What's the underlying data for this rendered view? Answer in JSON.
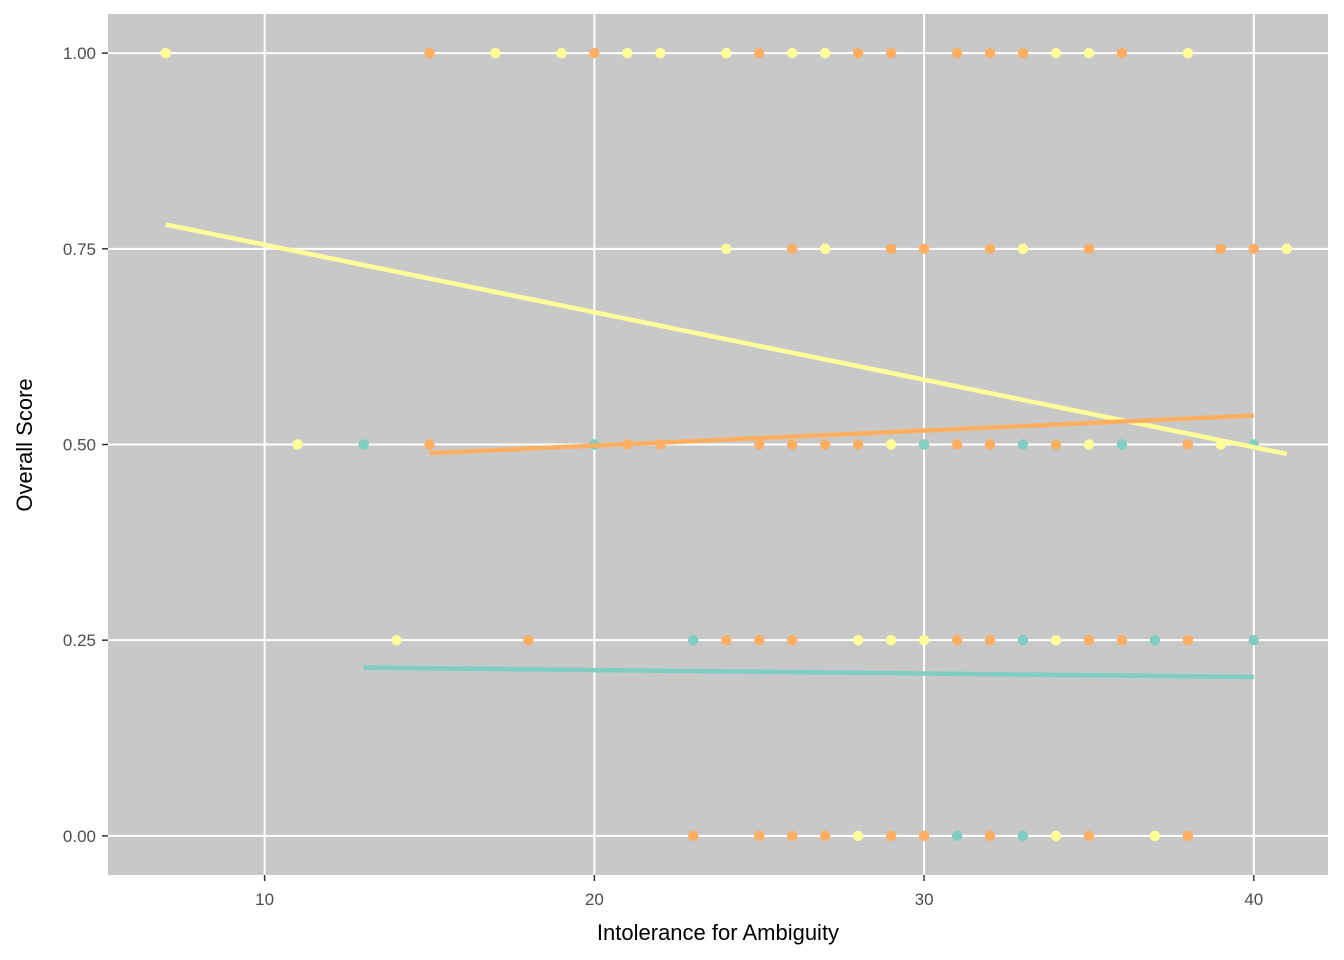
{
  "chart_data": {
    "type": "scatter",
    "xlabel": "Intolerance for Ambiguity",
    "ylabel": "Overall Score",
    "xlim": [
      5.25,
      42.25
    ],
    "ylim": [
      -0.05,
      1.05
    ],
    "x_ticks": [
      10,
      20,
      30,
      40
    ],
    "x_tick_labels": [
      "10",
      "20",
      "30",
      "40"
    ],
    "y_ticks": [
      0,
      0.25,
      0.5,
      0.75,
      1
    ],
    "y_tick_labels": [
      "0.00",
      "0.25",
      "0.50",
      "0.75",
      "1.00"
    ],
    "grid": true,
    "legend": "none",
    "panel_background": "#c8c8c8",
    "grid_color": "#ffffff",
    "series": [
      {
        "color": "#ffff99",
        "points": [
          [
            7,
            1
          ],
          [
            17,
            1
          ],
          [
            19,
            1
          ],
          [
            21,
            1
          ],
          [
            22,
            1
          ],
          [
            24,
            1
          ],
          [
            26,
            1
          ],
          [
            27,
            1
          ],
          [
            34,
            1
          ],
          [
            35,
            1
          ],
          [
            38,
            1
          ],
          [
            24,
            0.75
          ],
          [
            27,
            0.75
          ],
          [
            33,
            0.75
          ],
          [
            41,
            0.75
          ],
          [
            11,
            0.5
          ],
          [
            29,
            0.5
          ],
          [
            35,
            0.5
          ],
          [
            39,
            0.5
          ],
          [
            14,
            0.25
          ],
          [
            28,
            0.25
          ],
          [
            29,
            0.25
          ],
          [
            30,
            0.25
          ],
          [
            34,
            0.25
          ],
          [
            28,
            0
          ],
          [
            34,
            0
          ],
          [
            37,
            0
          ]
        ],
        "fit": {
          "x": [
            7,
            41
          ],
          "y": [
            0.781,
            0.488
          ]
        }
      },
      {
        "color": "#fdae61",
        "points": [
          [
            15,
            1
          ],
          [
            20,
            1
          ],
          [
            25,
            1
          ],
          [
            28,
            1
          ],
          [
            29,
            1
          ],
          [
            31,
            1
          ],
          [
            32,
            1
          ],
          [
            33,
            1
          ],
          [
            36,
            1
          ],
          [
            26,
            0.75
          ],
          [
            29,
            0.75
          ],
          [
            30,
            0.75
          ],
          [
            32,
            0.75
          ],
          [
            35,
            0.75
          ],
          [
            39,
            0.75
          ],
          [
            40,
            0.75
          ],
          [
            15,
            0.5
          ],
          [
            21,
            0.5
          ],
          [
            22,
            0.5
          ],
          [
            25,
            0.5
          ],
          [
            26,
            0.5
          ],
          [
            27,
            0.5
          ],
          [
            28,
            0.5
          ],
          [
            31,
            0.5
          ],
          [
            32,
            0.5
          ],
          [
            34,
            0.5
          ],
          [
            38,
            0.5
          ],
          [
            18,
            0.25
          ],
          [
            24,
            0.25
          ],
          [
            25,
            0.25
          ],
          [
            26,
            0.25
          ],
          [
            31,
            0.25
          ],
          [
            32,
            0.25
          ],
          [
            35,
            0.25
          ],
          [
            36,
            0.25
          ],
          [
            38,
            0.25
          ],
          [
            23,
            0
          ],
          [
            25,
            0
          ],
          [
            26,
            0
          ],
          [
            27,
            0
          ],
          [
            29,
            0
          ],
          [
            30,
            0
          ],
          [
            32,
            0
          ],
          [
            35,
            0
          ],
          [
            38,
            0
          ]
        ],
        "fit": {
          "x": [
            15,
            40
          ],
          "y": [
            0.489,
            0.537
          ]
        }
      },
      {
        "color": "#80cdc1",
        "points": [
          [
            13,
            0.5
          ],
          [
            20,
            0.5
          ],
          [
            30,
            0.5
          ],
          [
            33,
            0.5
          ],
          [
            36,
            0.5
          ],
          [
            40,
            0.5
          ],
          [
            23,
            0.25
          ],
          [
            33,
            0.25
          ],
          [
            37,
            0.25
          ],
          [
            40,
            0.25
          ],
          [
            31,
            0
          ],
          [
            33,
            0
          ]
        ],
        "fit": {
          "x": [
            13,
            40
          ],
          "y": [
            0.215,
            0.203
          ]
        }
      }
    ]
  }
}
